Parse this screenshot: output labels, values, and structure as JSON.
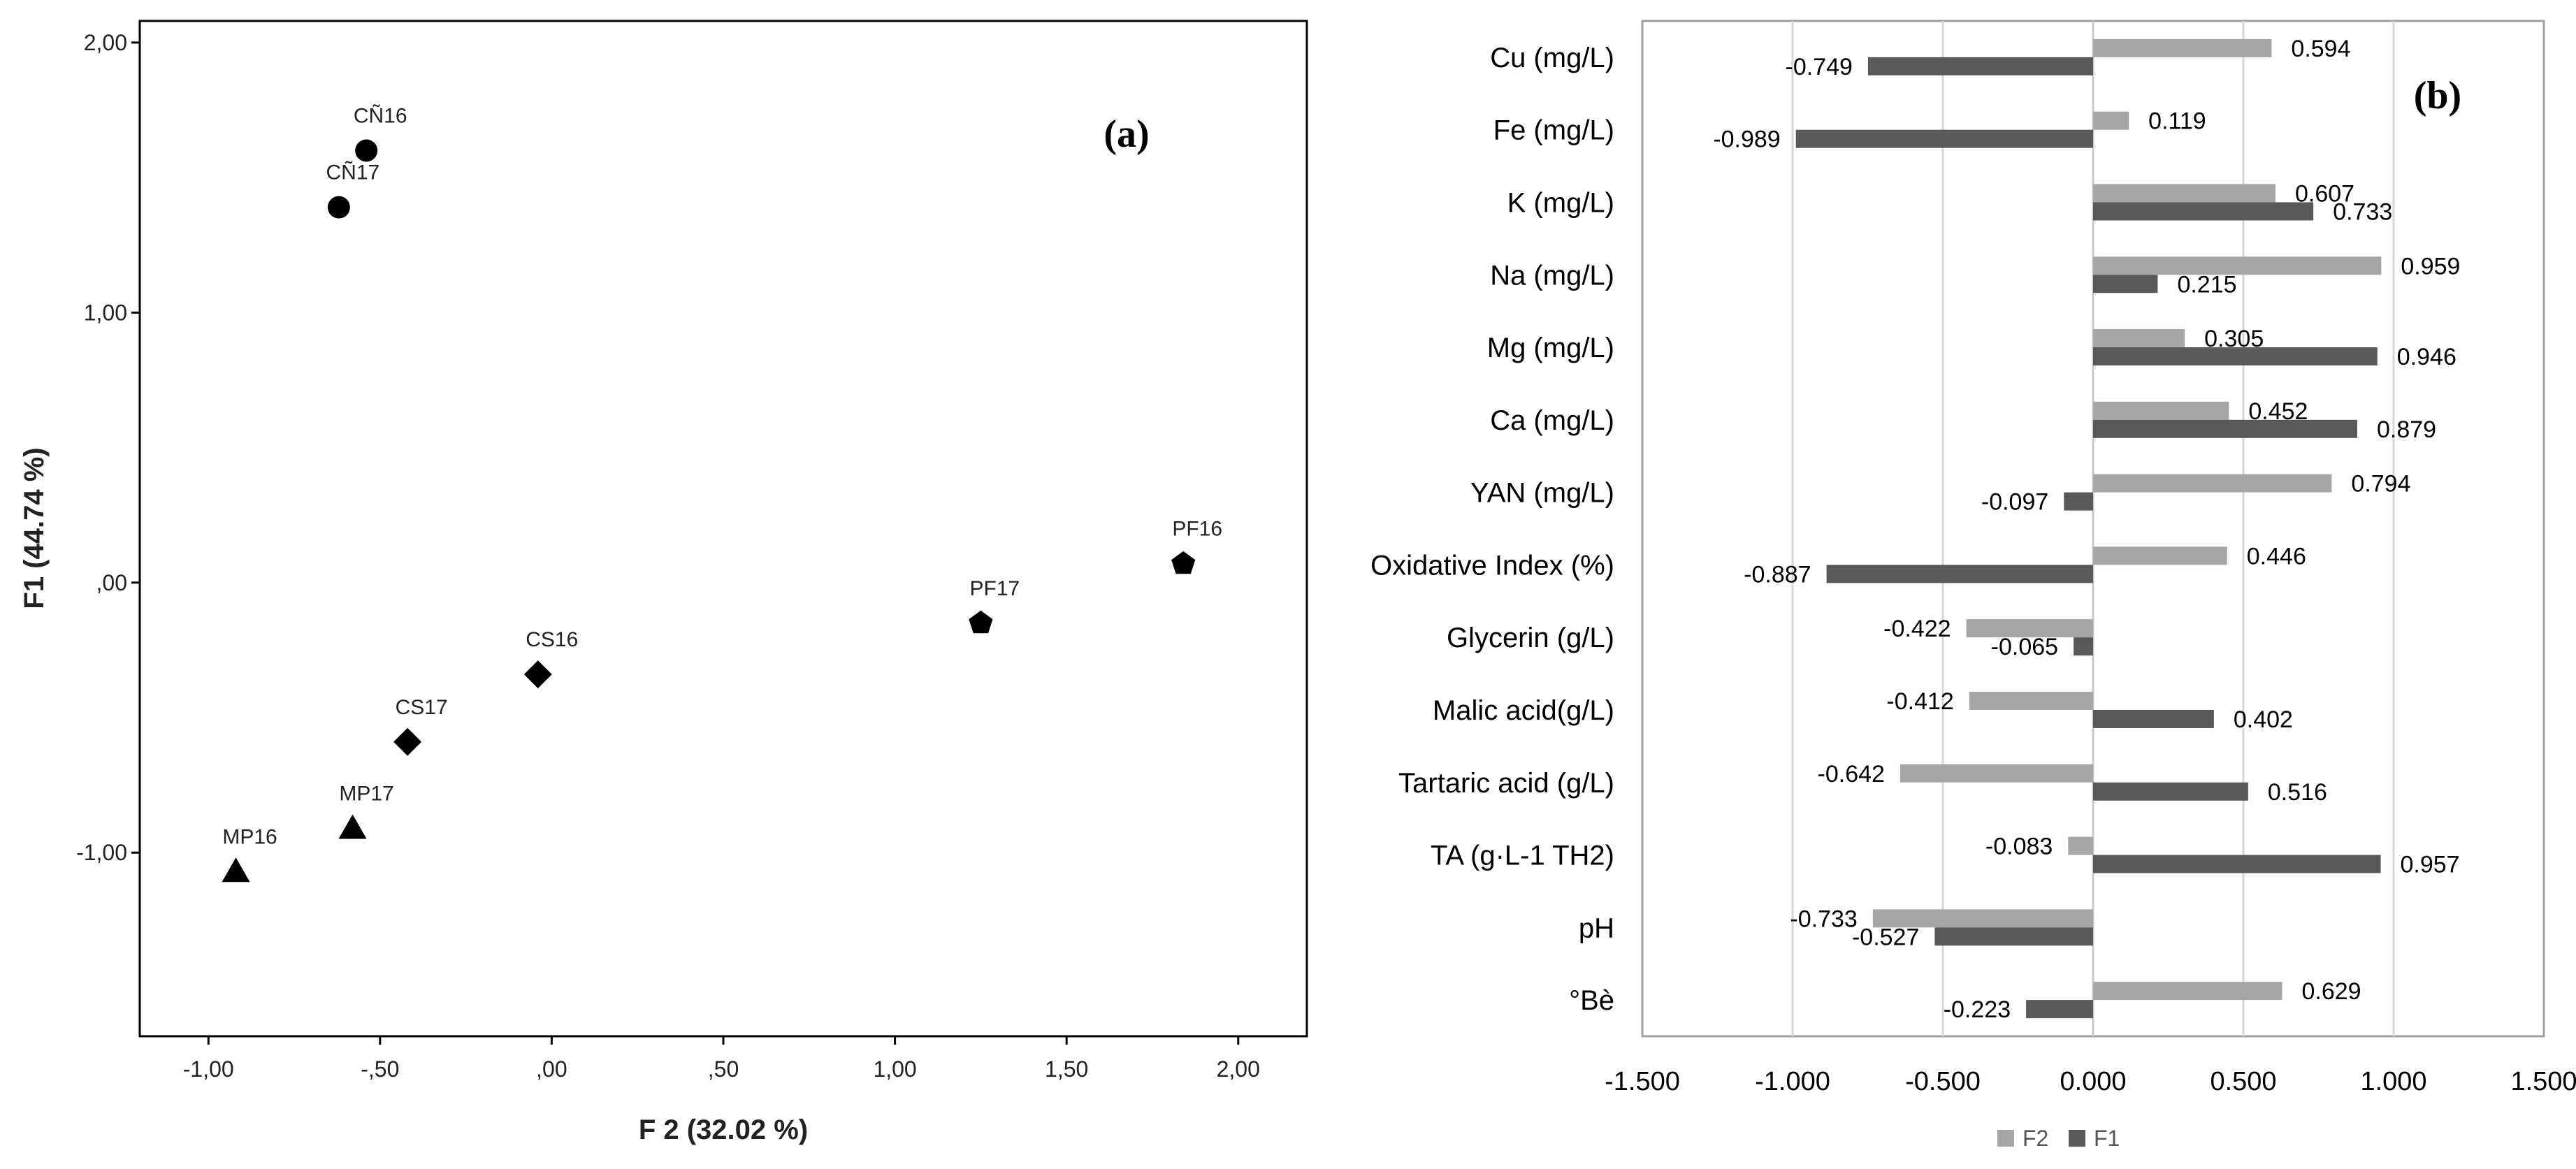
{
  "chart_data": [
    {
      "type": "scatter",
      "panel_label": "(a)",
      "xlabel": "F 2 (32.02 %)",
      "ylabel": "F1 (44.74 %)",
      "xlim": [
        -1.2,
        2.2
      ],
      "ylim": [
        -1.68,
        2.08
      ],
      "xticks": [
        -1.0,
        -0.5,
        0.0,
        0.5,
        1.0,
        1.5,
        2.0
      ],
      "xtick_labels": [
        "-1,00",
        "-,50",
        ",00",
        ",50",
        "1,00",
        "1,50",
        "2,00"
      ],
      "yticks": [
        2.0,
        1.0,
        0.0,
        -1.0
      ],
      "ytick_labels": [
        "2,00",
        "1,00",
        ",00",
        "-1,00"
      ],
      "points": [
        {
          "label": "CÑ16",
          "x": -0.54,
          "y": 1.6,
          "marker": "circle"
        },
        {
          "label": "CÑ17",
          "x": -0.62,
          "y": 1.39,
          "marker": "circle"
        },
        {
          "label": "PF16",
          "x": 1.84,
          "y": 0.07,
          "marker": "pentagon"
        },
        {
          "label": "PF17",
          "x": 1.25,
          "y": -0.15,
          "marker": "pentagon"
        },
        {
          "label": "CS16",
          "x": -0.04,
          "y": -0.34,
          "marker": "diamond"
        },
        {
          "label": "CS17",
          "x": -0.42,
          "y": -0.59,
          "marker": "diamond"
        },
        {
          "label": "MP17",
          "x": -0.58,
          "y": -0.91,
          "marker": "triangle"
        },
        {
          "label": "MP16",
          "x": -0.92,
          "y": -1.07,
          "marker": "triangle"
        }
      ]
    },
    {
      "type": "bar",
      "orientation": "horizontal",
      "panel_label": "(b)",
      "categories": [
        "Cu (mg/L)",
        "Fe (mg/L)",
        "K (mg/L)",
        "Na (mg/L)",
        "Mg (mg/L)",
        "Ca (mg/L)",
        "YAN (mg/L)",
        "Oxidative Index (%)",
        "Glycerin (g/L)",
        "Malic acid(g/L)",
        "Tartaric acid (g/L)",
        "TA (g·L-1 TH2)",
        "pH",
        "°Bè"
      ],
      "series": [
        {
          "name": "F2",
          "color": "#a6a6a6",
          "values": [
            0.594,
            0.119,
            0.607,
            0.959,
            0.305,
            0.452,
            0.794,
            0.446,
            -0.422,
            -0.412,
            -0.642,
            -0.083,
            -0.733,
            0.629
          ]
        },
        {
          "name": "F1",
          "color": "#595959",
          "values": [
            -0.749,
            -0.989,
            0.733,
            0.215,
            0.946,
            0.879,
            -0.097,
            -0.887,
            -0.065,
            0.402,
            0.516,
            0.957,
            -0.527,
            -0.223
          ]
        }
      ],
      "value_labels": {
        "F2": [
          "0.594",
          "0.119",
          "0.607",
          "0.959",
          "0.305",
          "0.452",
          "0.794",
          "0.446",
          "-0.422",
          "-0.412",
          "-0.642",
          "-0.083",
          "-0.733",
          "0.629"
        ],
        "F1": [
          "-0.749",
          "-0.989",
          "0.733",
          "0.215",
          "0.946",
          "0.879",
          "-0.097",
          "-0.887",
          "-0.065",
          "0.402",
          "0.516",
          "0.957",
          "-0.527",
          "-0.223"
        ]
      },
      "xlim": [
        -1.5,
        1.5
      ],
      "xticks": [
        -1.5,
        -1.0,
        -0.5,
        0.0,
        0.5,
        1.0,
        1.5
      ],
      "xtick_labels": [
        "-1.500",
        "-1.000",
        "-0.500",
        "0.000",
        "0.500",
        "1.000",
        "1.500"
      ],
      "legend": {
        "position": "bottom",
        "entries": [
          "F2",
          "F1"
        ]
      }
    }
  ]
}
